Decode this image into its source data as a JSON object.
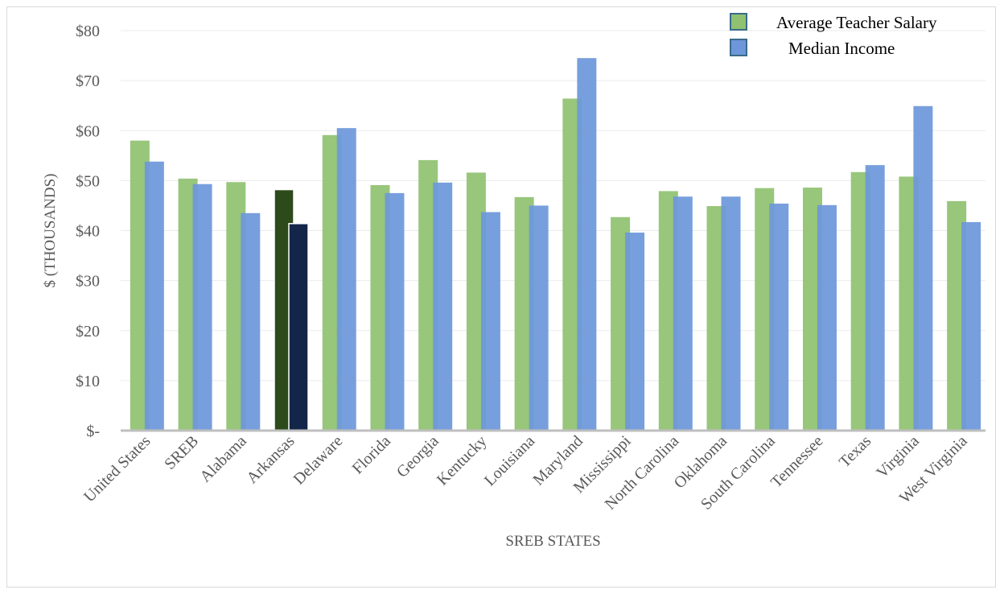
{
  "chart_data": {
    "type": "bar",
    "title": "",
    "xlabel": "SREB STATES",
    "ylabel": "$ (THOUSANDS)",
    "ylim": [
      0,
      80
    ],
    "yticks": [
      0,
      10,
      20,
      30,
      40,
      50,
      60,
      70,
      80
    ],
    "ytick_labels": [
      "$-",
      "$10",
      "$20",
      "$30",
      "$40",
      "$50",
      "$60",
      "$70",
      "$80"
    ],
    "grid": true,
    "legend_position": "top-right",
    "categories": [
      "United States",
      "SREB",
      "Alabama",
      "Arkansas",
      "Delaware",
      "Florida",
      "Georgia",
      "Kentucky",
      "Louisiana",
      "Maryland",
      "Mississippi",
      "North Carolina",
      "Oklahoma",
      "South Carolina",
      "Tennessee",
      "Texas",
      "Virginia",
      "West Virginia"
    ],
    "highlight_category": "Arkansas",
    "series": [
      {
        "name": "Average Teacher Salary",
        "color": "#8fc170",
        "highlight_color": "#2c4a1a",
        "values": [
          58.0,
          50.4,
          49.7,
          48.2,
          59.1,
          49.1,
          54.1,
          51.6,
          46.7,
          66.4,
          42.7,
          47.9,
          44.9,
          48.5,
          48.6,
          51.7,
          50.8,
          45.9
        ]
      },
      {
        "name": "Median Income",
        "color": "#6d97da",
        "highlight_color": "#14254a",
        "values": [
          53.8,
          49.3,
          43.5,
          41.4,
          60.5,
          47.5,
          49.6,
          43.7,
          45.0,
          74.5,
          39.6,
          46.8,
          46.8,
          45.4,
          45.1,
          53.1,
          64.9,
          41.7
        ]
      }
    ]
  }
}
